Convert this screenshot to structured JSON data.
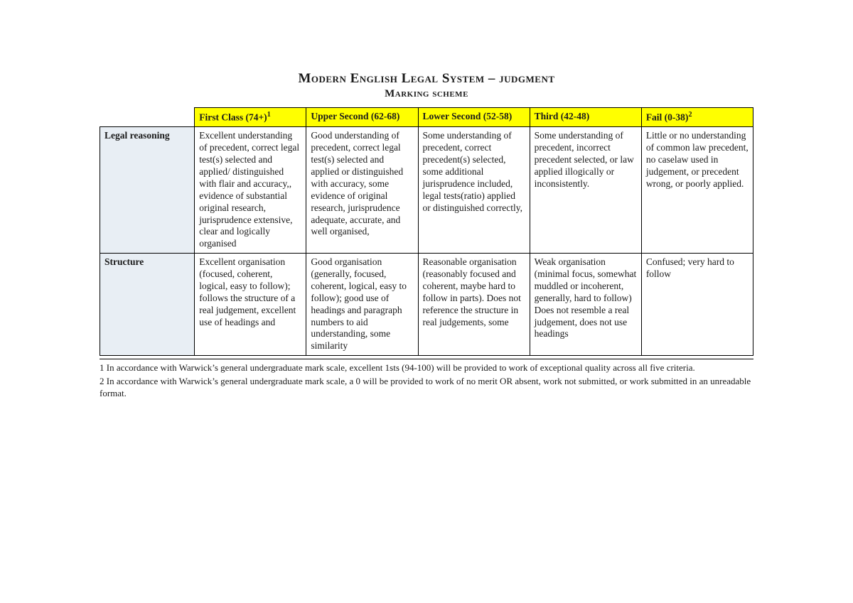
{
  "title": "Modern English Legal System – judgment",
  "subtitle": "Marking scheme",
  "headers": {
    "first": "First Class (74+)",
    "first_sup": "1",
    "upper": "Upper Second (62-68)",
    "lower": "Lower Second (52-58)",
    "third": "Third (42-48)",
    "fail": "Fail (0-38)",
    "fail_sup": "2"
  },
  "rows": [
    {
      "label": "Legal reasoning",
      "cells": {
        "first": "Excellent understanding of precedent, correct legal test(s) selected and applied/ distinguished with flair and accuracy,, evidence of substantial original research, jurisprudence extensive, clear and logically organised",
        "upper": "Good understanding of precedent, correct legal test(s) selected and applied or distinguished with accuracy,  some evidence of original research, jurisprudence adequate, accurate, and well organised,",
        "lower": "Some understanding of precedent, correct precedent(s) selected, some additional jurisprudence included, legal tests(ratio) applied or distinguished correctly,",
        "third": "Some understanding of precedent, incorrect precedent selected, or law applied illogically or inconsistently.",
        "fail": "Little or no understanding of common law precedent, no caselaw used in judgement, or precedent wrong, or poorly applied."
      }
    },
    {
      "label": "Structure",
      "cells": {
        "first": "Excellent organisation (focused, coherent, logical, easy to follow); follows the structure of a real judgement, excellent use of headings and",
        "upper": "Good organisation (generally, focused, coherent, logical, easy to follow); good use of  headings and paragraph numbers to aid understanding, some similarity",
        "lower": "Reasonable organisation (reasonably focused and coherent, maybe hard to follow in parts).  Does not reference the structure in real judgements, some",
        "third": "Weak organisation (minimal focus, somewhat muddled or incoherent, generally, hard to follow) Does not resemble a real judgement, does not use headings",
        "fail": "Confused; very hard to follow"
      }
    }
  ],
  "footnotes": {
    "f1": "1 In accordance with Warwick’s general undergraduate mark scale, excellent 1sts (94-100) will be provided to work of exceptional quality across all five criteria.",
    "f2": "2 In accordance with Warwick’s general undergraduate mark scale, a 0 will be provided to work of no merit OR absent, work not submitted, or work submitted in an unreadable format."
  },
  "colors": {
    "header_bg": "#ffff00",
    "rowheader_bg": "#e8eef4",
    "border": "#000000",
    "text": "#1a1a1a",
    "page_bg": "#ffffff"
  },
  "typography": {
    "title_fontsize": 19,
    "subtitle_fontsize": 15,
    "body_fontsize": 13.5,
    "footnote_fontsize": 13,
    "font_family": "Georgia, serif",
    "title_variant": "small-caps"
  },
  "table": {
    "type": "table",
    "column_widths_pct": [
      14.5,
      17.1,
      17.1,
      17.1,
      17.1,
      17.1
    ]
  }
}
